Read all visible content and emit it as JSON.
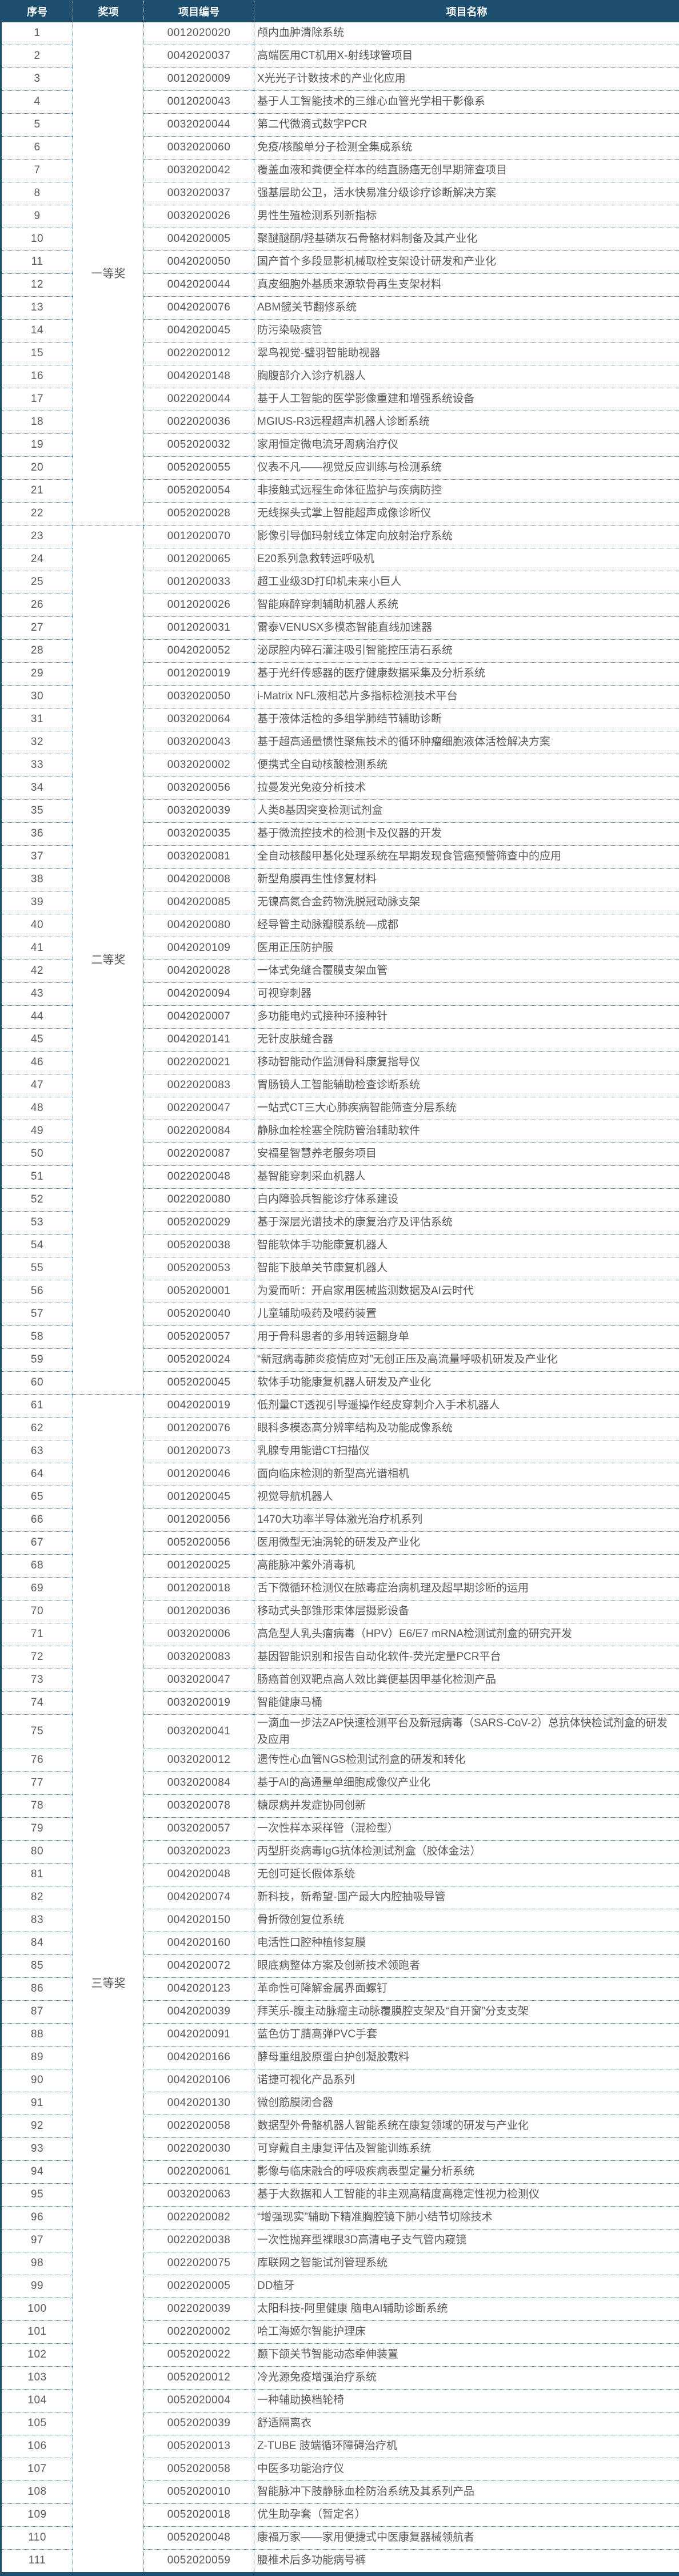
{
  "colors": {
    "header_bg": "#1d4e6e",
    "divider_blue": "#2e75b6",
    "frame_blue": "#1d4e6e",
    "body_text_gray": "#595959"
  },
  "table": {
    "headers": {
      "serial": "序号",
      "award": "奖项",
      "code": "项目编号",
      "name": "项目名称"
    },
    "groups": [
      {
        "label": "一等奖",
        "start": 1,
        "end": 22
      },
      {
        "label": "二等奖",
        "start": 23,
        "end": 60
      },
      {
        "label": "三等奖",
        "start": 61,
        "end": 111
      }
    ],
    "rows": [
      {
        "n": "1",
        "code": "0012020020",
        "name": "颅内血肿清除系统"
      },
      {
        "n": "2",
        "code": "0042020037",
        "name": "高端医用CT机用X-射线球管项目"
      },
      {
        "n": "3",
        "code": "0012020009",
        "name": "X光光子计数技术的产业化应用"
      },
      {
        "n": "4",
        "code": "0012020043",
        "name": "基于人工智能技术的三维心血管光学相干影像系"
      },
      {
        "n": "5",
        "code": "0032020044",
        "name": "第二代微滴式数字PCR"
      },
      {
        "n": "6",
        "code": "0032020060",
        "name": "免疫/核酸单分子检测全集成系统"
      },
      {
        "n": "7",
        "code": "0032020042",
        "name": "覆盖血液和粪便全样本的结直肠癌无创早期筛查项目"
      },
      {
        "n": "8",
        "code": "0032020037",
        "name": "强基层助公卫，活水快易准分级诊疗诊断解决方案"
      },
      {
        "n": "9",
        "code": "0032020026",
        "name": "男性生殖检测系列新指标"
      },
      {
        "n": "10",
        "code": "0042020005",
        "name": "聚醚醚酮/羟基磷灰石骨骼材料制备及其产业化"
      },
      {
        "n": "11",
        "code": "0042020050",
        "name": "国产首个多段显影机械取栓支架设计研发和产业化"
      },
      {
        "n": "12",
        "code": "0042020044",
        "name": "真皮细胞外基质来源软骨再生支架材料"
      },
      {
        "n": "13",
        "code": "0042020076",
        "name": "ABM髋关节翻修系统"
      },
      {
        "n": "14",
        "code": "0042020045",
        "name": "防污染吸痰管"
      },
      {
        "n": "15",
        "code": "0022020012",
        "name": "翠鸟视觉-璧羽智能助视器"
      },
      {
        "n": "16",
        "code": "0042020148",
        "name": "胸腹部介入诊疗机器人"
      },
      {
        "n": "17",
        "code": "0022020044",
        "name": "基于人工智能的医学影像重建和增强系统设备"
      },
      {
        "n": "18",
        "code": "0022020036",
        "name": "MGIUS-R3远程超声机器人诊断系统"
      },
      {
        "n": "19",
        "code": "0052020032",
        "name": "家用恒定微电流牙周病治疗仪"
      },
      {
        "n": "20",
        "code": "0052020055",
        "name": "仪表不凡——视觉反应训练与检测系统"
      },
      {
        "n": "21",
        "code": "0052020054",
        "name": "非接触式远程生命体征监护与疾病防控"
      },
      {
        "n": "22",
        "code": "0052020028",
        "name": "无线探头式掌上智能超声成像诊断仪"
      },
      {
        "n": "23",
        "code": "0012020070",
        "name": "影像引导伽玛射线立体定向放射治疗系统"
      },
      {
        "n": "24",
        "code": "0012020065",
        "name": "E20系列急救转运呼吸机"
      },
      {
        "n": "25",
        "code": "0012020033",
        "name": "超工业级3D打印机未来小巨人"
      },
      {
        "n": "26",
        "code": "0012020026",
        "name": "智能麻醉穿刺辅助机器人系统"
      },
      {
        "n": "27",
        "code": "0012020031",
        "name": "雷泰VENUSX多模态智能直线加速器"
      },
      {
        "n": "28",
        "code": "0042020052",
        "name": "泌尿腔内碎石灌注吸引智能控压清石系统"
      },
      {
        "n": "29",
        "code": "0012020019",
        "name": "基于光纤传感器的医疗健康数据采集及分析系统"
      },
      {
        "n": "30",
        "code": "0032020050",
        "name": "i-Matrix NFL液相芯片多指标检测技术平台"
      },
      {
        "n": "31",
        "code": "0032020064",
        "name": "基于液体活检的多组学肺结节辅助诊断"
      },
      {
        "n": "32",
        "code": "0032020043",
        "name": "基于超高通量惯性聚焦技术的循环肿瘤细胞液体活检解决方案"
      },
      {
        "n": "33",
        "code": "0032020002",
        "name": "便携式全自动核酸检测系统"
      },
      {
        "n": "34",
        "code": "0032020056",
        "name": "拉曼发光免疫分析技术"
      },
      {
        "n": "35",
        "code": "0032020039",
        "name": "人类8基因突变检测试剂盒"
      },
      {
        "n": "36",
        "code": "0032020035",
        "name": "基于微流控技术的检测卡及仪器的开发"
      },
      {
        "n": "37",
        "code": "0032020081",
        "name": "全自动核酸甲基化处理系统在早期发现食管癌预警筛查中的应用"
      },
      {
        "n": "38",
        "code": "0042020008",
        "name": "新型角膜再生性修复材料"
      },
      {
        "n": "39",
        "code": "0042020085",
        "name": "无镍高氮合金药物洗脱冠动脉支架"
      },
      {
        "n": "40",
        "code": "0042020080",
        "name": "经导管主动脉瓣膜系统—成都"
      },
      {
        "n": "41",
        "code": "0042020109",
        "name": "医用正压防护服"
      },
      {
        "n": "42",
        "code": "0042020028",
        "name": "一体式免缝合覆膜支架血管"
      },
      {
        "n": "43",
        "code": "0042020094",
        "name": "可视穿刺器"
      },
      {
        "n": "44",
        "code": "0042020007",
        "name": "多功能电灼式接种环接种针"
      },
      {
        "n": "45",
        "code": "0042020141",
        "name": "无针皮肤缝合器"
      },
      {
        "n": "46",
        "code": "0022020021",
        "name": "移动智能动作监测骨科康复指导仪"
      },
      {
        "n": "47",
        "code": "0022020083",
        "name": "胃肠镜人工智能辅助检查诊断系统"
      },
      {
        "n": "48",
        "code": "0022020047",
        "name": "一站式CT三大心肺疾病智能筛查分层系统"
      },
      {
        "n": "49",
        "code": "0022020084",
        "name": "静脉血栓栓塞全院防管治辅助软件"
      },
      {
        "n": "50",
        "code": "0022020087",
        "name": "安福星智慧养老服务项目"
      },
      {
        "n": "51",
        "code": "0022020048",
        "name": "基智能穿刺采血机器人"
      },
      {
        "n": "52",
        "code": "0022020080",
        "name": "白内障验兵智能诊疗体系建设"
      },
      {
        "n": "53",
        "code": "0052020029",
        "name": "基于深层光谱技术的康复治疗及评估系统"
      },
      {
        "n": "54",
        "code": "0052020038",
        "name": "智能软体手功能康复机器人"
      },
      {
        "n": "55",
        "code": "0052020053",
        "name": "智能下肢单关节康复机器人"
      },
      {
        "n": "56",
        "code": "0052020001",
        "name": "为爱而听：开启家用医械监测数据及AI云时代"
      },
      {
        "n": "57",
        "code": "0052020040",
        "name": "儿童辅助吸药及喂药装置"
      },
      {
        "n": "58",
        "code": "0052020057",
        "name": "用于骨科患者的多用转运翻身单"
      },
      {
        "n": "59",
        "code": "0052020024",
        "name": "“新冠病毒肺炎疫情应对”无创正压及高流量呼吸机研发及产业化"
      },
      {
        "n": "60",
        "code": "0052020045",
        "name": "软体手功能康复机器人研发及产业化"
      },
      {
        "n": "61",
        "code": "0042020019",
        "name": "低剂量CT透视引导遥操作经皮穿刺介入手术机器人"
      },
      {
        "n": "62",
        "code": "0012020076",
        "name": "眼科多模态高分辨率结构及功能成像系统"
      },
      {
        "n": "63",
        "code": "0012020073",
        "name": "乳腺专用能谱CT扫描仪"
      },
      {
        "n": "64",
        "code": "0012020046",
        "name": "面向临床检测的新型高光谱相机"
      },
      {
        "n": "65",
        "code": "0012020045",
        "name": "视觉导航机器人"
      },
      {
        "n": "66",
        "code": "0012020056",
        "name": "1470大功率半导体激光治疗机系列"
      },
      {
        "n": "67",
        "code": "0052020056",
        "name": "医用微型无油涡轮的研发及产业化"
      },
      {
        "n": "68",
        "code": "0012020025",
        "name": "高能脉冲紫外消毒机"
      },
      {
        "n": "69",
        "code": "0012020018",
        "name": "舌下微循环检测仪在脓毒症治病机理及超早期诊断的运用"
      },
      {
        "n": "70",
        "code": "0012020036",
        "name": "移动式头部锥形束体层摄影设备"
      },
      {
        "n": "71",
        "code": "0032020006",
        "name": "高危型人乳头瘤病毒（HPV）E6/E7 mRNA检测试剂盒的研究开发"
      },
      {
        "n": "72",
        "code": "0032020083",
        "name": "基因智能识别和报告自动化软件-荧光定量PCR平台"
      },
      {
        "n": "73",
        "code": "0032020047",
        "name": "肠癌首创双靶点高人效比粪便基因甲基化检测产品"
      },
      {
        "n": "74",
        "code": "0032020019",
        "name": "智能健康马桶"
      },
      {
        "n": "75",
        "code": "0032020041",
        "name": "一滴血一步法ZAP快速检测平台及新冠病毒（SARS-CoV-2）总抗体快检试剂盒的研发及应用"
      },
      {
        "n": "76",
        "code": "0032020012",
        "name": "遗传性心血管NGS检测试剂盒的研发和转化"
      },
      {
        "n": "77",
        "code": "0032020084",
        "name": "基于AI的高通量单细胞成像仪产业化"
      },
      {
        "n": "78",
        "code": "0032020078",
        "name": "糖尿病并发症协同创新"
      },
      {
        "n": "79",
        "code": "0032020057",
        "name": "一次性样本采样管（混检型）"
      },
      {
        "n": "80",
        "code": "0032020023",
        "name": "丙型肝炎病毒IgG抗体检测试剂盒（胶体金法）"
      },
      {
        "n": "81",
        "code": "0042020048",
        "name": "无创可延长假体系统"
      },
      {
        "n": "82",
        "code": "0042020074",
        "name": "新科技，新希望-国产最大内腔抽吸导管"
      },
      {
        "n": "83",
        "code": "0042020150",
        "name": "骨折微创复位系统"
      },
      {
        "n": "84",
        "code": "0042020160",
        "name": "电活性口腔种植修复膜"
      },
      {
        "n": "85",
        "code": "0042020072",
        "name": "眼底病整体方案及创新技术领跑者"
      },
      {
        "n": "86",
        "code": "0042020123",
        "name": "革命性可降解金属界面螺钉"
      },
      {
        "n": "87",
        "code": "0042020039",
        "name": "拜芙乐-腹主动脉瘤主动脉覆膜腔支架及“自开窗”分支支架"
      },
      {
        "n": "88",
        "code": "0042020091",
        "name": "蓝色仿丁腈高弹PVC手套"
      },
      {
        "n": "89",
        "code": "0042020166",
        "name": "酵母重组胶原蛋白护创凝胶敷料"
      },
      {
        "n": "90",
        "code": "0042020106",
        "name": "诺捷可视化产品系列"
      },
      {
        "n": "91",
        "code": "0042020130",
        "name": "微创筋膜闭合器"
      },
      {
        "n": "92",
        "code": "0022020058",
        "name": "数据型外骨骼机器人智能系统在康复领域的研发与产业化"
      },
      {
        "n": "93",
        "code": "0022020030",
        "name": "可穿戴自主康复评估及智能训练系统"
      },
      {
        "n": "94",
        "code": "0022020061",
        "name": "影像与临床融合的呼吸疾病表型定量分析系统"
      },
      {
        "n": "95",
        "code": "0032020063",
        "name": "基于大数据和人工智能的非主观高精度高稳定性视力检测仪"
      },
      {
        "n": "96",
        "code": "0022020082",
        "name": "“增强现实”辅助下精准胸腔镜下肺小结节切除技术"
      },
      {
        "n": "97",
        "code": "0022020038",
        "name": "一次性抛弃型裸眼3D高清电子支气管内窥镜"
      },
      {
        "n": "98",
        "code": "0022020075",
        "name": "库联网之智能试剂管理系统"
      },
      {
        "n": "99",
        "code": "0022020005",
        "name": "DD植牙"
      },
      {
        "n": "100",
        "code": "0022020039",
        "name": "太阳科技-阿里健康 脑电AI辅助诊断系统"
      },
      {
        "n": "101",
        "code": "0022020002",
        "name": "哈工海姬尔智能护理床"
      },
      {
        "n": "102",
        "code": "0052020022",
        "name": "颞下颌关节智能动态牵伸装置"
      },
      {
        "n": "103",
        "code": "0052020012",
        "name": "冷光源免疫增强治疗系统"
      },
      {
        "n": "104",
        "code": "0052020004",
        "name": "一种辅助换档轮椅"
      },
      {
        "n": "105",
        "code": "0052020039",
        "name": "舒适隔离衣"
      },
      {
        "n": "106",
        "code": "0052020013",
        "name": "Z-TUBE 肢端循环障碍治疗机"
      },
      {
        "n": "107",
        "code": "0052020058",
        "name": "中医多功能治疗仪"
      },
      {
        "n": "108",
        "code": "0052020010",
        "name": "智能脉冲下肢静脉血栓防治系统及其系列产品"
      },
      {
        "n": "109",
        "code": "0052020018",
        "name": "优生助孕套（暂定名）"
      },
      {
        "n": "110",
        "code": "0052020048",
        "name": "康福万家——家用便捷式中医康复器械领航者"
      },
      {
        "n": "111",
        "code": "0052020059",
        "name": "腰椎术后多功能病号裤"
      }
    ]
  }
}
